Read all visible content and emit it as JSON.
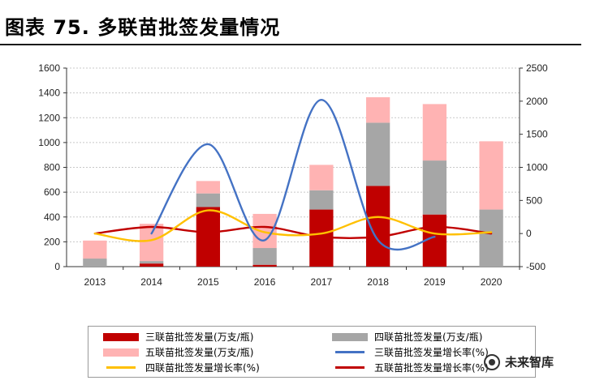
{
  "header": {
    "title": "图表 75. 多联苗批签发量情况"
  },
  "colors": {
    "triple_bar": "#c00000",
    "quad_bar": "#a6a6a6",
    "penta_bar": "#ffb3b3",
    "triple_growth": "#4472c4",
    "quad_growth": "#ffc000",
    "penta_growth": "#c00000"
  },
  "chart_data": {
    "type": "bar",
    "categories": [
      "2013",
      "2014",
      "2015",
      "2016",
      "2017",
      "2018",
      "2019",
      "2020"
    ],
    "y_left": {
      "min": 0,
      "max": 1600,
      "ticks": [
        "0",
        "200",
        "400",
        "600",
        "800",
        "1000",
        "1200",
        "1400",
        "1600"
      ]
    },
    "y_right": {
      "min": -500,
      "max": 2500,
      "ticks": [
        "-500",
        "0",
        "500",
        "1000",
        "1500",
        "2000",
        "2500"
      ]
    },
    "grid": true,
    "legend_position": "bottom",
    "stacked_series": [
      {
        "name": "三联苗批签发量(万支/瓶)",
        "values": [
          0,
          25,
          480,
          15,
          460,
          650,
          420,
          0
        ]
      },
      {
        "name": "四联苗批签发量(万支/瓶)",
        "values": [
          65,
          20,
          110,
          135,
          155,
          510,
          435,
          460
        ]
      },
      {
        "name": "五联苗批签发量(万支/瓶)",
        "values": [
          145,
          300,
          100,
          275,
          205,
          205,
          455,
          550
        ]
      }
    ],
    "line_series": [
      {
        "name": "三联苗批签发量增长率(%)",
        "values": [
          null,
          0,
          1350,
          -100,
          2020,
          -100,
          -50,
          null
        ]
      },
      {
        "name": "四联苗批签发量增长率(%)",
        "values": [
          0,
          -100,
          350,
          20,
          0,
          250,
          0,
          20
        ]
      },
      {
        "name": "五联苗批签发量增长率(%)",
        "values": [
          0,
          100,
          20,
          100,
          -50,
          -50,
          100,
          0
        ]
      }
    ]
  },
  "watermark": {
    "text": "未来智库"
  }
}
